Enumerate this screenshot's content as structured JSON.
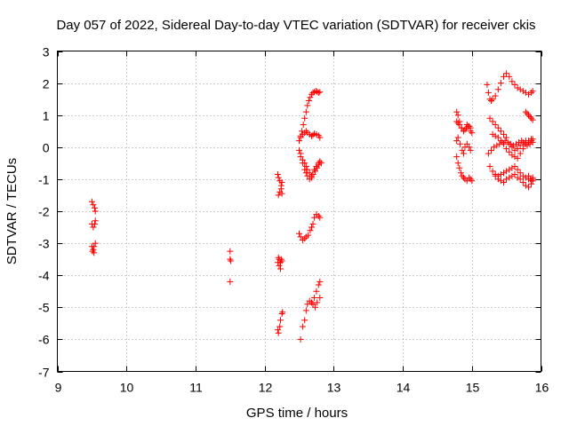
{
  "chart_data": {
    "type": "scatter",
    "title": "Day 057 of 2022, Sidereal Day-to-day VTEC variation (SDTVAR) for receiver ckis",
    "xlabel": "GPS time / hours",
    "ylabel": "SDTVAR / TECUs",
    "xlim": [
      9,
      16
    ],
    "ylim": [
      -7,
      3
    ],
    "xticks": [
      "9",
      "10",
      "11",
      "12",
      "13",
      "14",
      "15",
      "16"
    ],
    "yticks": [
      "-7",
      "-6",
      "-5",
      "-4",
      "-3",
      "-2",
      "-1",
      "0",
      "1",
      "2",
      "3"
    ],
    "grid": true,
    "marker": "+",
    "color": "#ff0000",
    "series": [
      {
        "name": "SDTVAR",
        "x": [
          9.5,
          9.52,
          9.54,
          9.55,
          9.5,
          9.52,
          9.54,
          9.55,
          9.5,
          9.52,
          9.53,
          9.55,
          9.51,
          9.53,
          11.5,
          11.5,
          11.51,
          11.5,
          12.19,
          12.2,
          12.22,
          12.24,
          12.25,
          12.2,
          12.22,
          12.24,
          12.25,
          12.19,
          12.21,
          12.23,
          12.24,
          12.2,
          12.21,
          12.23,
          12.25,
          12.19,
          12.2,
          12.22,
          12.23,
          12.25,
          12.26,
          12.5,
          12.52,
          12.54,
          12.56,
          12.58,
          12.6,
          12.62,
          12.64,
          12.66,
          12.68,
          12.7,
          12.72,
          12.74,
          12.76,
          12.78,
          12.8,
          12.52,
          12.55,
          12.58,
          12.6,
          12.62,
          12.65,
          12.68,
          12.7,
          12.73,
          12.76,
          12.78,
          12.8,
          12.5,
          12.52,
          12.55,
          12.58,
          12.6,
          12.63,
          12.66,
          12.68,
          12.7,
          12.72,
          12.75,
          12.78,
          12.8,
          12.52,
          12.55,
          12.58,
          12.6,
          12.62,
          12.65,
          12.68,
          12.7,
          12.72,
          12.75,
          12.78,
          12.8,
          12.52,
          12.55,
          12.58,
          12.6,
          12.62,
          12.65,
          12.68,
          12.7,
          12.72,
          12.75,
          12.78,
          12.8,
          12.5,
          12.52,
          12.55,
          12.58,
          12.6,
          12.62,
          12.65,
          12.68,
          12.7,
          12.72,
          12.75,
          12.78,
          12.8,
          12.82,
          12.7,
          12.73,
          12.76,
          12.8,
          14.78,
          14.8,
          14.82,
          14.85,
          14.88,
          14.9,
          14.93,
          14.96,
          14.98,
          14.78,
          14.8,
          14.83,
          14.86,
          14.88,
          14.9,
          14.93,
          14.96,
          14.98,
          14.78,
          14.8,
          14.82,
          14.84,
          14.86,
          14.88,
          14.9,
          14.93,
          14.96,
          14.98,
          15.0,
          14.78,
          14.8,
          14.82,
          14.85,
          14.88,
          14.9,
          14.92,
          14.95,
          14.98,
          15.0,
          15.22,
          15.24,
          15.26,
          15.28,
          15.3,
          15.34,
          15.38,
          15.42,
          15.46,
          15.5,
          15.54,
          15.58,
          15.62,
          15.66,
          15.7,
          15.74,
          15.78,
          15.82,
          15.86,
          15.88,
          15.26,
          15.3,
          15.34,
          15.38,
          15.42,
          15.46,
          15.5,
          15.54,
          15.58,
          15.62,
          15.66,
          15.7,
          15.74,
          15.78,
          15.82,
          15.86,
          15.88,
          15.24,
          15.28,
          15.32,
          15.36,
          15.4,
          15.44,
          15.48,
          15.52,
          15.56,
          15.6,
          15.64,
          15.68,
          15.72,
          15.76,
          15.8,
          15.84,
          15.88,
          15.26,
          15.3,
          15.34,
          15.38,
          15.42,
          15.46,
          15.5,
          15.54,
          15.58,
          15.62,
          15.66,
          15.7,
          15.74,
          15.78,
          15.82,
          15.86,
          15.88,
          15.34,
          15.38,
          15.42,
          15.46,
          15.5,
          15.54,
          15.58,
          15.62,
          15.66,
          15.7,
          15.74,
          15.78,
          15.82,
          15.86,
          15.88,
          15.3,
          15.34,
          15.38,
          15.42,
          15.46,
          15.5,
          15.54,
          15.58,
          15.62,
          15.66,
          15.7,
          15.74,
          15.78,
          15.82,
          15.86,
          15.78,
          15.8,
          15.82,
          15.84,
          15.86,
          15.88,
          15.82,
          15.85,
          15.88
        ],
        "y": [
          -1.7,
          -1.8,
          -1.9,
          -2.0,
          -2.4,
          -2.5,
          -2.4,
          -2.3,
          -3.1,
          -3.2,
          -3.1,
          -3.0,
          -3.25,
          -3.3,
          -3.25,
          -3.5,
          -3.55,
          -4.2,
          -0.85,
          -0.95,
          -1.05,
          -1.3,
          -1.45,
          -1.5,
          -1.4,
          -1.2,
          -1.1,
          -3.6,
          -3.7,
          -3.8,
          -3.5,
          -3.45,
          -3.5,
          -3.6,
          -3.55,
          -5.7,
          -5.8,
          -5.6,
          -5.4,
          -5.2,
          -5.15,
          0.2,
          0.3,
          0.5,
          0.7,
          0.9,
          1.1,
          1.3,
          1.45,
          1.55,
          1.65,
          1.7,
          1.72,
          1.75,
          1.73,
          1.7,
          1.72,
          -0.2,
          -0.4,
          -0.5,
          -0.6,
          -0.7,
          -0.8,
          -0.9,
          -0.85,
          -0.75,
          -0.65,
          -0.55,
          -0.45,
          -2.7,
          -2.8,
          -2.9,
          -2.85,
          -2.8,
          -2.75,
          -2.6,
          -2.5,
          -2.4,
          -2.2,
          -2.1,
          -2.15,
          -2.2,
          -6.0,
          -5.6,
          -5.4,
          -5.1,
          -4.9,
          -4.8,
          -4.85,
          -4.9,
          -4.7,
          -4.5,
          -4.3,
          -4.2,
          0.35,
          0.4,
          0.45,
          0.5,
          0.45,
          0.4,
          0.35,
          0.38,
          0.42,
          0.4,
          0.36,
          0.3,
          -0.1,
          -0.3,
          -0.5,
          -0.7,
          -0.8,
          -0.9,
          -1.0,
          -0.95,
          -0.85,
          -0.7,
          -0.6,
          -0.5,
          -0.45,
          -0.5,
          -4.9,
          -5.0,
          -4.85,
          -4.7,
          1.1,
          1.0,
          0.8,
          0.6,
          0.5,
          0.55,
          0.7,
          0.65,
          0.6,
          0.2,
          0.3,
          0.1,
          -0.1,
          -0.2,
          0.0,
          0.1,
          0.0,
          -0.1,
          -0.3,
          -0.5,
          -0.65,
          -0.8,
          -0.9,
          -0.95,
          -1.0,
          -1.05,
          -0.95,
          -1.0,
          -1.05,
          0.8,
          0.75,
          0.7,
          0.6,
          0.5,
          0.55,
          0.6,
          0.65,
          0.5,
          0.45,
          1.95,
          1.7,
          1.5,
          1.45,
          1.5,
          1.6,
          1.8,
          2.0,
          2.2,
          2.3,
          2.2,
          2.05,
          1.95,
          1.85,
          1.8,
          1.75,
          1.7,
          1.65,
          1.7,
          1.75,
          0.9,
          0.8,
          0.7,
          0.6,
          0.5,
          0.4,
          0.3,
          0.1,
          0.0,
          -0.1,
          -0.05,
          0.05,
          0.15,
          0.2,
          0.15,
          0.2,
          0.25,
          -0.2,
          -0.1,
          0.0,
          0.05,
          0.1,
          0.15,
          0.2,
          0.15,
          0.1,
          0.05,
          0.1,
          0.15,
          0.2,
          0.1,
          0.05,
          0.1,
          0.15,
          -0.6,
          -0.75,
          -0.85,
          -0.9,
          -0.85,
          -0.8,
          -0.75,
          -0.7,
          -0.65,
          -0.6,
          -0.7,
          -0.8,
          -0.9,
          -0.95,
          -1.0,
          -1.05,
          -1.0,
          -0.9,
          -1.0,
          -1.05,
          -1.1,
          -1.0,
          -0.95,
          -0.9,
          -0.85,
          -0.95,
          -1.0,
          -1.1,
          -1.2,
          -1.25,
          -1.15,
          -1.05,
          0.4,
          0.35,
          0.3,
          0.2,
          0.1,
          -0.05,
          -0.15,
          -0.25,
          -0.3,
          -0.35,
          -0.2,
          -0.05,
          0.1,
          0.2,
          0.25,
          1.1,
          1.05,
          1.0,
          0.95,
          0.9,
          0.85,
          -0.9,
          -1.0,
          -0.95
        ]
      }
    ]
  }
}
